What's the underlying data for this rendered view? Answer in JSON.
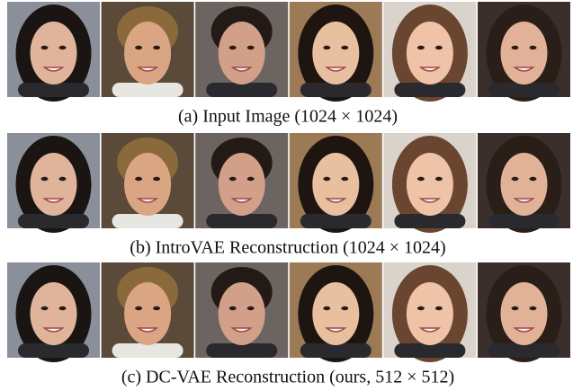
{
  "figure": {
    "captions": [
      "(a) Input Image (1024 × 1024)",
      "(b) IntroVAE Reconstruction (1024 × 1024)",
      "(c) DC-VAE Reconstruction (ours, 512 × 512)"
    ]
  }
}
